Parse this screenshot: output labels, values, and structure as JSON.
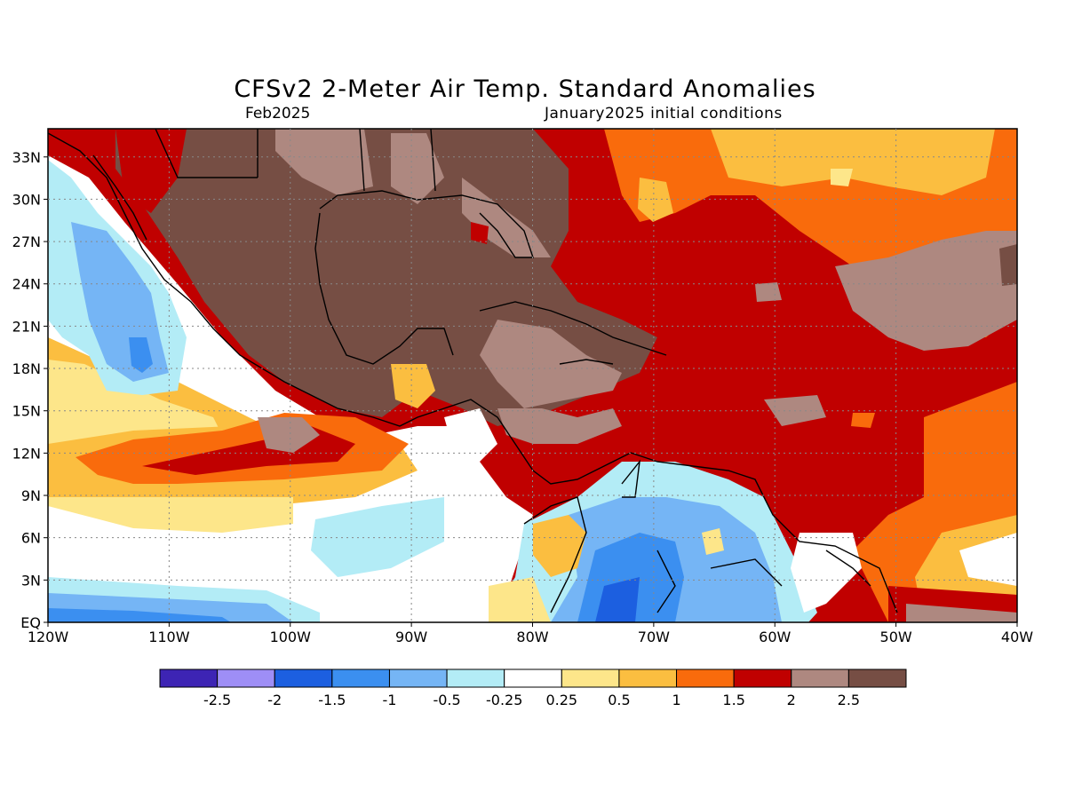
{
  "header": {
    "title": "CFSv2 2-Meter Air Temp. Standard Anomalies",
    "valid_month": "Feb2025",
    "init_conditions": "January2025 initial conditions"
  },
  "map": {
    "lon_range": [
      -120,
      -40
    ],
    "lat_range": [
      0,
      35
    ],
    "lat_ticks": [
      "33N",
      "30N",
      "27N",
      "24N",
      "21N",
      "18N",
      "15N",
      "12N",
      "9N",
      "6N",
      "3N",
      "EQ"
    ],
    "lat_values": [
      33,
      30,
      27,
      24,
      21,
      18,
      15,
      12,
      9,
      6,
      3,
      0
    ],
    "lon_ticks": [
      "120W",
      "110W",
      "100W",
      "90W",
      "80W",
      "70W",
      "60W",
      "50W",
      "40W"
    ],
    "lon_values": [
      -120,
      -110,
      -100,
      -90,
      -80,
      -70,
      -60,
      -50,
      -40
    ],
    "grid": "dotted"
  },
  "colorbar": {
    "labels": [
      "-2.5",
      "-2",
      "-1.5",
      "-1",
      "-0.5",
      "-0.25",
      "0.25",
      "0.5",
      "1",
      "1.5",
      "2",
      "2.5"
    ],
    "colors": [
      "#3d24b4",
      "#9e8ef6",
      "#1c5fe0",
      "#3b8ff0",
      "#75b5f5",
      "#b3ecf6",
      "#ffffff",
      "#fde68a",
      "#fbbe40",
      "#f96b0c",
      "#c00000",
      "#ae8880",
      "#764e44"
    ]
  }
}
